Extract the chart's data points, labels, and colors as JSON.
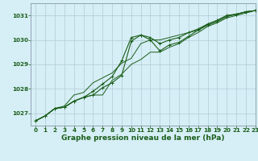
{
  "title": "Graphe pression niveau de la mer (hPa)",
  "bg_color": "#d6eef5",
  "grid_color": "#b0ccd8",
  "line_color": "#1a5e1a",
  "spine_color": "#8899aa",
  "xlim": [
    -0.5,
    23
  ],
  "ylim": [
    1026.5,
    1031.5
  ],
  "yticks": [
    1027,
    1028,
    1029,
    1030,
    1031
  ],
  "xticks": [
    0,
    1,
    2,
    3,
    4,
    5,
    6,
    7,
    8,
    9,
    10,
    11,
    12,
    13,
    14,
    15,
    16,
    17,
    18,
    19,
    20,
    21,
    22,
    23
  ],
  "hours": [
    0,
    1,
    2,
    3,
    4,
    5,
    6,
    7,
    8,
    9,
    10,
    11,
    12,
    13,
    14,
    15,
    16,
    17,
    18,
    19,
    20,
    21,
    22,
    23
  ],
  "line1": [
    1026.7,
    1026.9,
    1027.2,
    1027.25,
    1027.5,
    1027.65,
    1027.75,
    1028.05,
    1028.25,
    1028.55,
    1029.95,
    1030.2,
    1030.1,
    1029.85,
    1030.0,
    1030.1,
    1030.3,
    1030.45,
    1030.65,
    1030.8,
    1031.0,
    1031.05,
    1031.15,
    1031.2
  ],
  "line2": [
    1026.7,
    1026.9,
    1027.2,
    1027.25,
    1027.5,
    1027.65,
    1027.9,
    1028.2,
    1028.5,
    1029.15,
    1030.1,
    1030.2,
    1030.0,
    1029.55,
    1029.8,
    1029.9,
    1030.15,
    1030.4,
    1030.6,
    1030.75,
    1030.95,
    1031.05,
    1031.15,
    1031.2
  ],
  "line3": [
    1026.7,
    1026.9,
    1027.2,
    1027.3,
    1027.75,
    1027.85,
    1028.25,
    1028.45,
    1028.65,
    1029.05,
    1029.25,
    1029.85,
    1030.0,
    1030.0,
    1030.1,
    1030.2,
    1030.3,
    1030.4,
    1030.65,
    1030.8,
    1031.0,
    1031.05,
    1031.15,
    1031.2
  ],
  "line4": [
    1026.7,
    1026.9,
    1027.2,
    1027.25,
    1027.5,
    1027.65,
    1027.75,
    1027.75,
    1028.35,
    1028.6,
    1029.0,
    1029.2,
    1029.5,
    1029.5,
    1029.7,
    1029.85,
    1030.1,
    1030.3,
    1030.55,
    1030.7,
    1030.9,
    1031.0,
    1031.1,
    1031.2
  ],
  "title_fontsize": 6.5,
  "tick_fontsize": 5.2
}
